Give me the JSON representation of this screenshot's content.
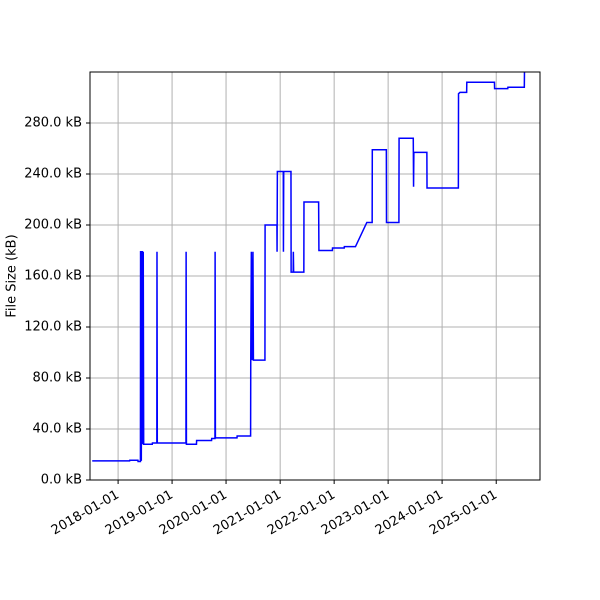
{
  "chart_data": {
    "type": "line",
    "ylabel": "File Size (kB)",
    "color": "#0000ff",
    "grid": true,
    "xlim": [
      "2017-06-25",
      "2025-10-24"
    ],
    "xticks": [
      "2018-01-01",
      "2019-01-01",
      "2020-01-01",
      "2021-01-01",
      "2022-01-01",
      "2023-01-01",
      "2024-01-01",
      "2025-01-01"
    ],
    "ylim": [
      0,
      320
    ],
    "yticks": [
      {
        "value": 0,
        "label": "0.0 kB"
      },
      {
        "value": 40,
        "label": "40.0 kB"
      },
      {
        "value": 80,
        "label": "80.0 kB"
      },
      {
        "value": 120,
        "label": "120.0 kB"
      },
      {
        "value": 160,
        "label": "160.0 kB"
      },
      {
        "value": 200,
        "label": "200.0 kB"
      },
      {
        "value": 240,
        "label": "240.0 kB"
      },
      {
        "value": 280,
        "label": "280.0 kB"
      }
    ],
    "x": [
      "2017-07-10",
      "2018-03-20",
      "2018-03-21",
      "2018-05-15",
      "2018-05-16",
      "2018-06-01",
      "2018-06-02",
      "2018-06-06",
      "2018-06-07",
      "2018-06-10",
      "2018-06-14",
      "2018-06-15",
      "2018-06-20",
      "2018-06-23",
      "2018-08-20",
      "2018-08-21",
      "2018-09-20",
      "2018-09-21",
      "2018-09-23",
      "2019-04-05",
      "2019-04-06",
      "2019-04-08",
      "2019-06-15",
      "2019-06-16",
      "2019-09-25",
      "2019-09-26",
      "2019-10-18",
      "2019-10-19",
      "2019-10-21",
      "2020-03-15",
      "2020-03-16",
      "2020-06-15",
      "2020-06-16",
      "2020-06-20",
      "2020-06-24",
      "2020-07-01",
      "2020-07-04",
      "2020-09-20",
      "2020-09-21",
      "2020-12-10",
      "2020-12-11",
      "2020-12-13",
      "2021-01-22",
      "2021-01-23",
      "2021-01-25",
      "2021-03-15",
      "2021-03-16",
      "2021-03-30",
      "2021-03-31",
      "2021-04-02",
      "2021-06-10",
      "2021-06-11",
      "2021-09-18",
      "2021-09-20",
      "2021-12-20",
      "2021-12-21",
      "2022-03-10",
      "2022-03-11",
      "2022-05-25",
      "2022-08-10",
      "2022-09-15",
      "2022-09-16",
      "2022-12-20",
      "2022-12-21",
      "2023-03-15",
      "2023-03-16",
      "2023-06-20",
      "2023-06-22",
      "2023-06-24",
      "2023-09-20",
      "2023-09-21",
      "2024-04-20",
      "2024-04-21",
      "2024-05-01",
      "2024-06-15",
      "2024-06-16",
      "2024-12-20",
      "2024-12-21",
      "2025-03-20",
      "2025-03-21",
      "2025-07-10",
      "2025-07-11"
    ],
    "values": [
      15,
      15,
      15.5,
      15.5,
      14.5,
      14.5,
      179,
      179,
      15,
      179,
      179,
      28,
      179,
      28,
      28,
      29,
      29,
      179,
      29,
      29,
      179,
      28,
      28,
      31,
      31,
      32.5,
      32.5,
      179,
      33,
      33,
      34.5,
      34.5,
      94,
      179,
      94,
      179,
      94,
      94,
      200,
      200,
      179,
      242,
      242,
      179,
      242,
      242,
      163,
      163,
      179,
      163,
      163,
      218,
      218,
      180,
      180,
      182,
      182,
      183,
      183,
      202,
      202,
      259,
      259,
      202,
      202,
      268,
      268,
      230,
      257,
      257,
      229,
      229,
      303,
      304,
      304,
      312,
      312,
      307,
      307,
      308,
      308,
      320
    ]
  }
}
